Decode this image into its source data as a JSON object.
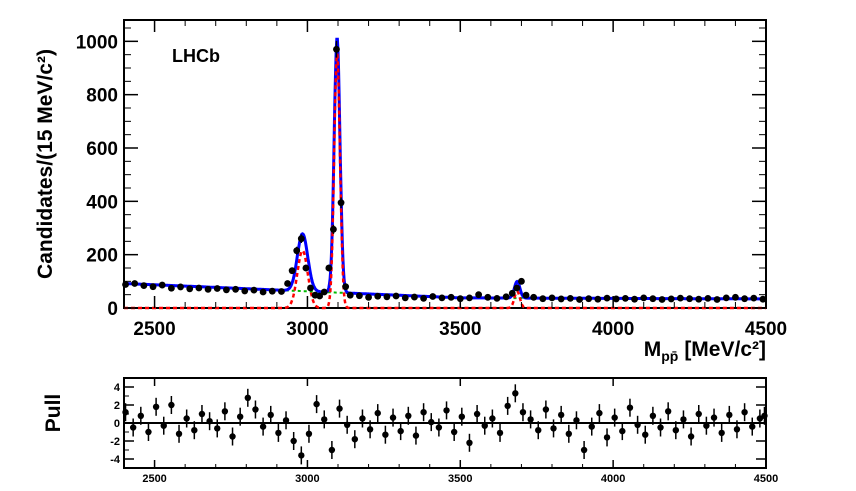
{
  "chart_data": [
    {
      "type": "scatter",
      "annotation": "LHCb",
      "xlabel": "M",
      "xlabel_sub": "pp̄",
      "xlabel_unit": "[MeV/c²]",
      "ylabel": "Candidates/(15 MeV/c²)",
      "xlim": [
        2400,
        4500
      ],
      "ylim": [
        0,
        1080
      ],
      "xticks": [
        "2500",
        "3000",
        "3500",
        "4000",
        "4500"
      ],
      "yticks": [
        "0",
        "200",
        "400",
        "600",
        "800",
        "1000"
      ],
      "grid": false,
      "colors": {
        "total_fit": "#0000ff",
        "signal": "#ff0000",
        "background": "#00bb00",
        "points": "#000000"
      },
      "series": [
        {
          "x": [
            2405,
            2435,
            2465,
            2495,
            2525,
            2555,
            2585,
            2615,
            2645,
            2675,
            2705,
            2735,
            2765,
            2795,
            2825,
            2855,
            2885,
            2915,
            2935,
            2950,
            2965,
            2980,
            2995,
            3010,
            3025,
            3040,
            3055,
            3070,
            3085,
            3095,
            3110,
            3125,
            3140,
            3170,
            3200,
            3230,
            3260,
            3290,
            3320,
            3350,
            3380,
            3410,
            3440,
            3470,
            3500,
            3530,
            3560,
            3590,
            3620,
            3650,
            3670,
            3685,
            3700,
            3715,
            3740,
            3770,
            3800,
            3830,
            3860,
            3890,
            3920,
            3950,
            3980,
            4010,
            4040,
            4070,
            4100,
            4130,
            4160,
            4190,
            4220,
            4250,
            4280,
            4310,
            4340,
            4370,
            4400,
            4430,
            4460,
            4490
          ],
          "y": [
            88,
            92,
            84,
            80,
            86,
            74,
            79,
            72,
            75,
            70,
            73,
            68,
            70,
            64,
            67,
            60,
            63,
            62,
            92,
            140,
            215,
            260,
            150,
            75,
            48,
            45,
            60,
            150,
            295,
            970,
            395,
            80,
            48,
            46,
            40,
            44,
            42,
            45,
            38,
            41,
            36,
            43,
            38,
            40,
            35,
            38,
            50,
            40,
            36,
            42,
            55,
            75,
            100,
            48,
            40,
            35,
            38,
            34,
            36,
            32,
            35,
            33,
            37,
            34,
            36,
            33,
            38,
            35,
            32,
            34,
            37,
            35,
            33,
            36,
            32,
            38,
            40,
            35,
            37,
            33
          ]
        }
      ]
    },
    {
      "type": "scatter",
      "ylabel": "Pull",
      "xlim": [
        2400,
        4500
      ],
      "ylim": [
        -5,
        5
      ],
      "xticks": [
        "2500",
        "3000",
        "3500",
        "4000",
        "4500"
      ],
      "yticks": [
        "4",
        "2",
        "0",
        "-2",
        "-4"
      ],
      "reference_line": 0,
      "series": [
        {
          "x": [
            2405,
            2430,
            2455,
            2480,
            2505,
            2530,
            2555,
            2580,
            2605,
            2630,
            2655,
            2680,
            2705,
            2730,
            2755,
            2780,
            2805,
            2830,
            2855,
            2880,
            2905,
            2930,
            2955,
            2980,
            3005,
            3030,
            3055,
            3080,
            3105,
            3130,
            3155,
            3180,
            3205,
            3230,
            3255,
            3280,
            3305,
            3330,
            3355,
            3380,
            3405,
            3430,
            3455,
            3480,
            3505,
            3530,
            3555,
            3580,
            3605,
            3630,
            3655,
            3680,
            3705,
            3730,
            3755,
            3780,
            3805,
            3830,
            3855,
            3880,
            3905,
            3930,
            3955,
            3980,
            4005,
            4030,
            4055,
            4080,
            4105,
            4130,
            4155,
            4180,
            4205,
            4230,
            4255,
            4280,
            4305,
            4330,
            4355,
            4380,
            4405,
            4430,
            4455,
            4480,
            4495
          ],
          "y": [
            1.2,
            -0.5,
            0.8,
            -1.0,
            1.8,
            -0.3,
            2.0,
            -1.2,
            0.5,
            -0.8,
            1.0,
            0.2,
            -0.6,
            1.3,
            -1.5,
            0.7,
            2.8,
            1.5,
            -0.4,
            0.9,
            -1.1,
            0.3,
            -2.0,
            -3.6,
            -1.2,
            2.1,
            0.4,
            -3.0,
            1.6,
            -0.2,
            -1.8,
            0.5,
            -0.7,
            1.1,
            -1.3,
            0.6,
            -0.9,
            0.8,
            -1.4,
            1.2,
            0.1,
            -0.5,
            1.4,
            -1.0,
            0.7,
            -2.2,
            1.0,
            -0.3,
            0.5,
            -1.1,
            1.9,
            3.3,
            1.2,
            0.4,
            -0.8,
            1.5,
            -0.6,
            0.9,
            -1.2,
            0.3,
            -3.0,
            -0.4,
            1.1,
            -1.6,
            0.6,
            -0.9,
            1.7,
            -0.2,
            -1.3,
            0.8,
            -0.5,
            1.3,
            -0.8,
            0.4,
            -1.5,
            1.0,
            -0.3,
            0.6,
            -1.1,
            0.9,
            -0.7,
            1.2,
            -0.4,
            0.5,
            0.8
          ]
        }
      ]
    }
  ]
}
